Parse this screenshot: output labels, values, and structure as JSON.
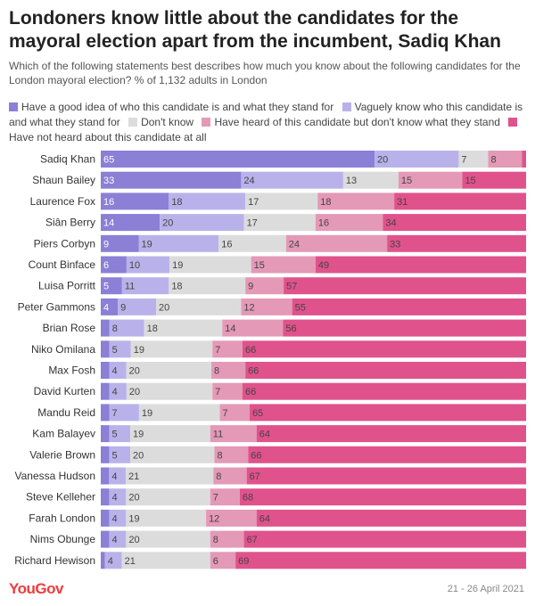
{
  "title": "Londoners know little about the candidates for the mayoral election apart from the incumbent, Sadiq Khan",
  "subtitle": "Which of the following statements best describes how much you know about the following candidates for the London mayoral election? % of 1,132 adults in London",
  "brand": "YouGov",
  "date": "21 - 26 April 2021",
  "colors": {
    "good_idea": "#8b7fd6",
    "vaguely": "#b9b2ea",
    "dont_know": "#dcdcdc",
    "heard_not_know": "#e499b7",
    "not_heard": "#e0528c"
  },
  "chart_data": {
    "type": "bar",
    "orientation": "horizontal",
    "stacked": true,
    "legend_position": "top",
    "categories": [
      "Sadiq Khan",
      "Shaun Bailey",
      "Laurence Fox",
      "Siân Berry",
      "Piers Corbyn",
      "Count Binface",
      "Luisa Porritt",
      "Peter Gammons",
      "Brian Rose",
      "Niko Omilana",
      "Max Fosh",
      "David Kurten",
      "Mandu Reid",
      "Kam Balayev",
      "Valerie Brown",
      "Vanessa Hudson",
      "Steve Kelleher",
      "Farah London",
      "Nims Obunge",
      "Richard Hewison"
    ],
    "series": [
      {
        "key": "good_idea",
        "name": "Have a good idea of who this candidate is and what they stand for",
        "values": [
          65,
          33,
          16,
          14,
          9,
          6,
          5,
          4,
          2,
          2,
          2,
          2,
          2,
          2,
          2,
          2,
          2,
          2,
          2,
          1
        ]
      },
      {
        "key": "vaguely",
        "name": "Vaguely know who this candidate is and what they stand for",
        "values": [
          20,
          24,
          18,
          20,
          19,
          10,
          11,
          9,
          8,
          5,
          4,
          4,
          7,
          5,
          5,
          4,
          4,
          4,
          4,
          4
        ]
      },
      {
        "key": "dont_know",
        "name": "Don't know",
        "values": [
          7,
          13,
          17,
          17,
          16,
          19,
          18,
          20,
          18,
          19,
          20,
          20,
          19,
          19,
          20,
          21,
          20,
          19,
          20,
          21
        ]
      },
      {
        "key": "heard_not_know",
        "name": "Have heard of this candidate but don't know what they stand",
        "values": [
          8,
          15,
          18,
          16,
          24,
          15,
          9,
          12,
          14,
          7,
          8,
          7,
          7,
          11,
          8,
          8,
          7,
          12,
          8,
          6
        ]
      },
      {
        "key": "not_heard",
        "name": "Have not heard about this candidate at all",
        "values": [
          1,
          15,
          31,
          34,
          33,
          49,
          57,
          55,
          56,
          66,
          66,
          66,
          65,
          64,
          66,
          67,
          68,
          64,
          67,
          69
        ]
      }
    ],
    "data_labels": [
      [
        "65",
        "20",
        "7",
        "8",
        ""
      ],
      [
        "33",
        "24",
        "13",
        "15",
        "15"
      ],
      [
        "16",
        "18",
        "17",
        "18",
        "31"
      ],
      [
        "14",
        "20",
        "17",
        "16",
        "34"
      ],
      [
        "9",
        "19",
        "16",
        "24",
        "33"
      ],
      [
        "6",
        "10",
        "19",
        "15",
        "49"
      ],
      [
        "5",
        "11",
        "18",
        "9",
        "57"
      ],
      [
        "4",
        "9",
        "20",
        "12",
        "55"
      ],
      [
        "",
        "8",
        "18",
        "14",
        "56"
      ],
      [
        "",
        "5",
        "19",
        "7",
        "66"
      ],
      [
        "",
        "4",
        "20",
        "8",
        "66"
      ],
      [
        "",
        "4",
        "20",
        "7",
        "66"
      ],
      [
        "",
        "7",
        "19",
        "7",
        "65"
      ],
      [
        "",
        "5",
        "19",
        "11",
        "64"
      ],
      [
        "",
        "5",
        "20",
        "8",
        "66"
      ],
      [
        "",
        "4",
        "21",
        "8",
        "67"
      ],
      [
        "",
        "4",
        "20",
        "7",
        "68"
      ],
      [
        "",
        "4",
        "19",
        "12",
        "64"
      ],
      [
        "",
        "4",
        "20",
        "8",
        "67"
      ],
      [
        "",
        "4",
        "21",
        "6",
        "69"
      ]
    ]
  }
}
